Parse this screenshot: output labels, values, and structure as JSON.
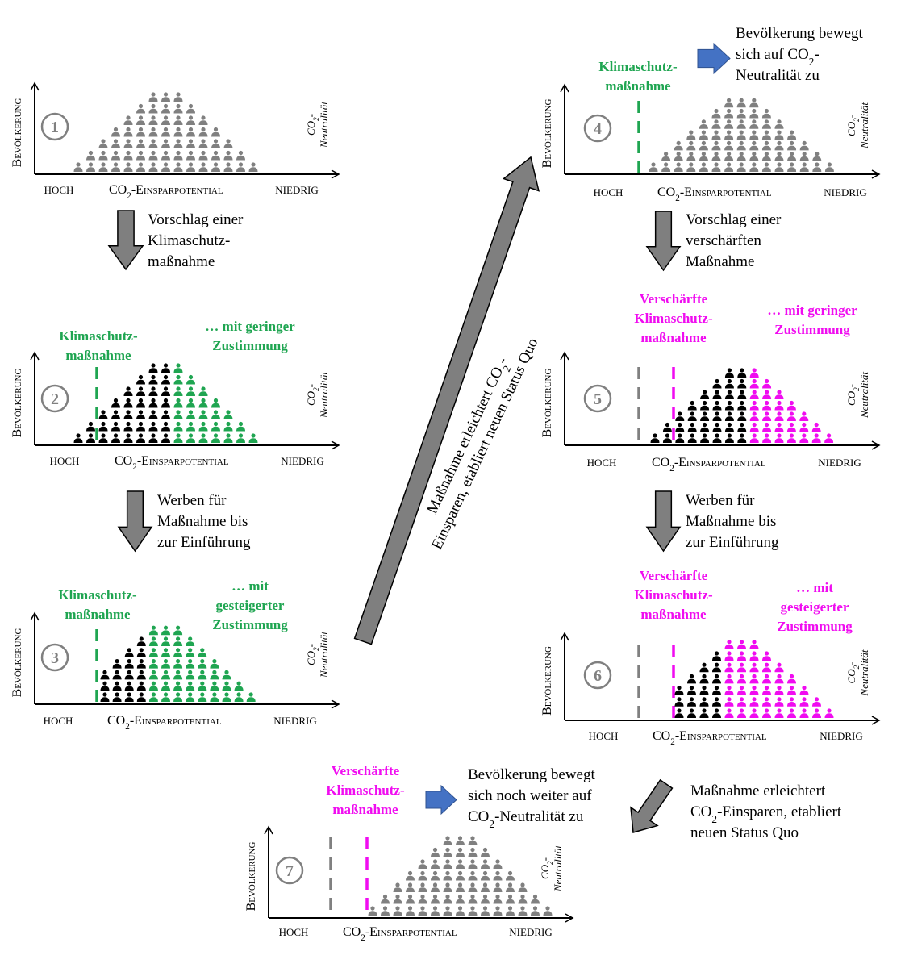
{
  "colors": {
    "population": "#808080",
    "opposed": "#000000",
    "green": "#1fa551",
    "magenta": "#f00cf0",
    "previous_measure": "#808080",
    "blue_arrow": "#4472c4",
    "gray_arrow": "#7f7f7f"
  },
  "axis": {
    "y_label": "Bevölkerung",
    "x_prefix": "CO",
    "x_sub": "2",
    "x_suffix": "-Einsparpotential",
    "low_end": "HOCH",
    "high_end": "NIEDRIG",
    "neutral_prefix": "CO",
    "neutral_sub": "2",
    "neutral_suffix": "-",
    "neutral_line2": "Neutralität"
  },
  "panels": [
    {
      "number": "1",
      "groups": [
        {
          "role": "population",
          "color": "#808080",
          "columns": [
            1,
            2,
            3,
            4,
            5,
            6,
            7,
            7,
            7,
            6,
            5,
            4,
            3,
            2,
            1
          ]
        }
      ]
    },
    {
      "number": "2",
      "groups": [
        {
          "role": "opposed",
          "color": "#000000",
          "columns": [
            1,
            2,
            3,
            4,
            5,
            6,
            7,
            7
          ]
        },
        {
          "role": "supporting",
          "color": "#1fa551",
          "columns": [
            7,
            6,
            5,
            4,
            3,
            2,
            1
          ]
        }
      ],
      "measure_label": [
        "Klimaschutz-",
        "maßnahme"
      ],
      "approval_label": [
        "… mit geringer",
        "Zustimmung"
      ]
    },
    {
      "number": "3",
      "groups": [
        {
          "role": "opposed",
          "color": "#000000",
          "columns": [
            3,
            4,
            5,
            6
          ]
        },
        {
          "role": "supporting",
          "color": "#1fa551",
          "columns": [
            7,
            7,
            7,
            6,
            5,
            4,
            3,
            2,
            1
          ]
        }
      ],
      "measure_label": [
        "Klimaschutz-",
        "maßnahme"
      ],
      "approval_label": [
        "… mit",
        "gesteigerter",
        "Zustimmung"
      ]
    },
    {
      "number": "4",
      "groups": [
        {
          "role": "population",
          "color": "#808080",
          "columns": [
            1,
            2,
            3,
            4,
            5,
            6,
            7,
            7,
            7,
            6,
            5,
            4,
            3,
            2,
            1
          ]
        }
      ],
      "measure_label": [
        "Klimaschutz-",
        "maßnahme"
      ]
    },
    {
      "number": "5",
      "groups": [
        {
          "role": "opposed",
          "color": "#000000",
          "columns": [
            1,
            2,
            3,
            4,
            5,
            6,
            7,
            7
          ]
        },
        {
          "role": "supporting",
          "color": "#f00cf0",
          "columns": [
            7,
            6,
            5,
            4,
            3,
            2,
            1
          ]
        }
      ],
      "measure_label": [
        "Verschärfte",
        "Klimaschutz-",
        "maßnahme"
      ],
      "approval_label": [
        "… mit geringer",
        "Zustimmung"
      ]
    },
    {
      "number": "6",
      "groups": [
        {
          "role": "opposed",
          "color": "#000000",
          "columns": [
            3,
            4,
            5,
            6
          ]
        },
        {
          "role": "supporting",
          "color": "#f00cf0",
          "columns": [
            7,
            7,
            7,
            6,
            5,
            4,
            3,
            2,
            1
          ]
        }
      ],
      "measure_label": [
        "Verschärfte",
        "Klimaschutz-",
        "maßnahme"
      ],
      "approval_label": [
        "… mit",
        "gesteigerter",
        "Zustimmung"
      ]
    },
    {
      "number": "7",
      "groups": [
        {
          "role": "population",
          "color": "#808080",
          "columns": [
            1,
            2,
            3,
            4,
            5,
            6,
            7,
            7,
            7,
            6,
            5,
            4,
            3,
            2,
            1
          ]
        }
      ],
      "measure_label": [
        "Verschärfte",
        "Klimaschutz-",
        "maßnahme"
      ]
    }
  ],
  "steps": {
    "s1": [
      "Vorschlag einer",
      "Klimaschutz-",
      "maßnahme"
    ],
    "s2": [
      "Werben für",
      "Maßnahme bis",
      "zur Einführung"
    ],
    "s4": [
      "Vorschlag einer",
      "verschärften",
      "Maßnahme"
    ],
    "s5": [
      "Werben für",
      "Maßnahme bis",
      "zur Einführung"
    ]
  },
  "shift_top": {
    "l1": "Bevölkerung bewegt",
    "l2_prefix": "sich auf CO",
    "l2_sub": "2",
    "l2_suffix": "-",
    "l3": "Neutralität zu"
  },
  "shift_bottom": {
    "l1": "Bevölkerung bewegt",
    "l2": "sich noch weiter auf",
    "l3_prefix": "CO",
    "l3_sub": "2",
    "l3_suffix": "-Neutralität zu"
  },
  "status_quo_diagonal": {
    "l1_prefix": "Maßnahme erleichtert CO",
    "l1_sub": "2",
    "l1_suffix": "-",
    "l2": "Einsparen, etabliert neuen Status Quo"
  },
  "status_quo_bottom": {
    "l1": "Maßnahme erleichtert",
    "l2_prefix": "CO",
    "l2_sub": "2",
    "l2_suffix": "-Einsparen, etabliert",
    "l3": "neuen Status Quo"
  }
}
